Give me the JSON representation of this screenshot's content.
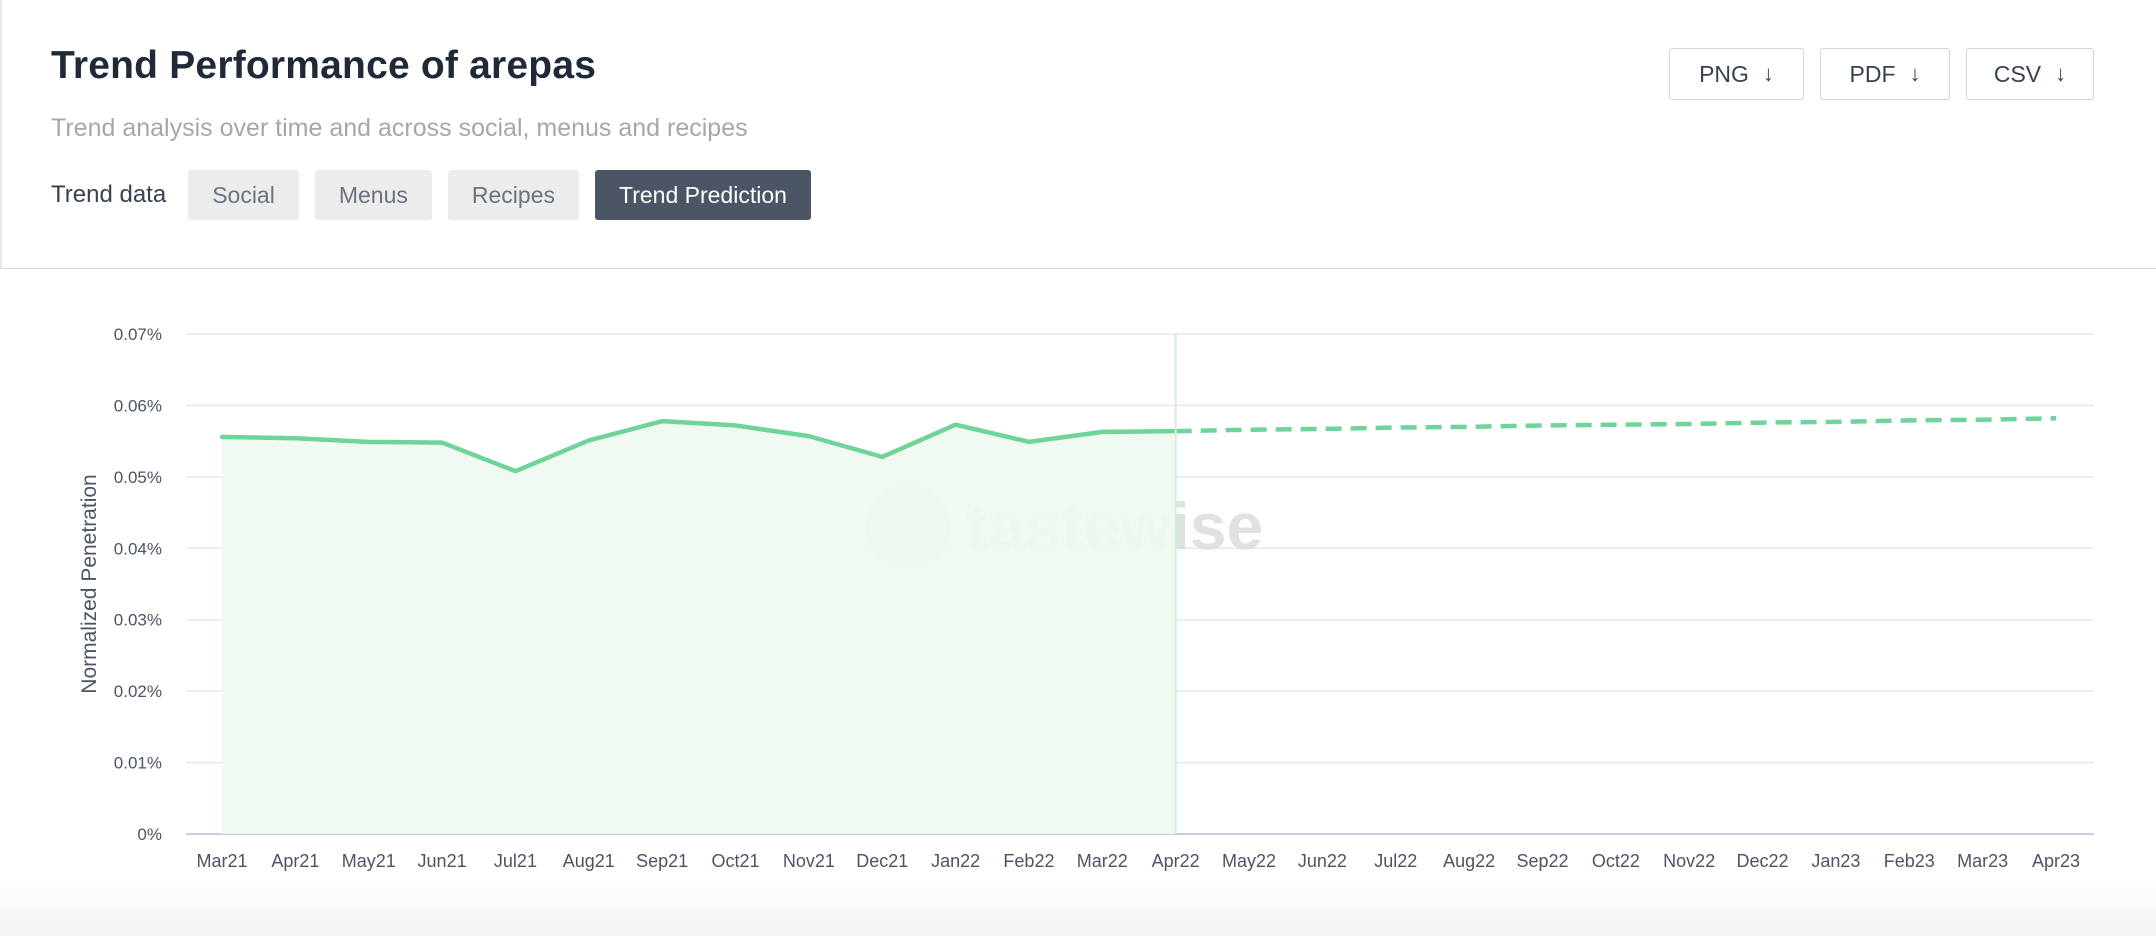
{
  "header": {
    "title": "Trend Performance of arepas",
    "subtitle": "Trend analysis over time and across social, menus and recipes",
    "trend_label": "Trend data",
    "tabs": [
      {
        "label": "Social",
        "active": false
      },
      {
        "label": "Menus",
        "active": false
      },
      {
        "label": "Recipes",
        "active": false
      },
      {
        "label": "Trend Prediction",
        "active": true
      }
    ]
  },
  "export": {
    "png_label": "PNG",
    "pdf_label": "PDF",
    "csv_label": "CSV",
    "arrow_icon": "arrow-down-icon"
  },
  "watermark": {
    "text": "tastewise",
    "icon": "tastewise-logo-icon"
  },
  "colors": {
    "line": "#6fd49a",
    "fill": "#eef9f2",
    "active_tab": "#4b5565",
    "grid": "#e5e7eb",
    "axis": "#c7cedf"
  },
  "chart_data": {
    "type": "line",
    "ylabel": "Normalized Penetration",
    "xlabel": "",
    "ylim": [
      0,
      0.07
    ],
    "y_ticks": [
      "0%",
      "0.01%",
      "0.02%",
      "0.03%",
      "0.04%",
      "0.05%",
      "0.06%",
      "0.07%"
    ],
    "y_tick_values": [
      0,
      0.01,
      0.02,
      0.03,
      0.04,
      0.05,
      0.06,
      0.07
    ],
    "categories": [
      "Mar21",
      "Apr21",
      "May21",
      "Jun21",
      "Jul21",
      "Aug21",
      "Sep21",
      "Oct21",
      "Nov21",
      "Dec21",
      "Jan22",
      "Feb22",
      "Mar22",
      "Apr22",
      "May22",
      "Jun22",
      "Jul22",
      "Aug22",
      "Sep22",
      "Oct22",
      "Nov22",
      "Dec22",
      "Jan23",
      "Feb23",
      "Mar23",
      "Apr23"
    ],
    "grid": true,
    "legend": "none",
    "series": [
      {
        "style": "solid",
        "area_fill": true,
        "values": [
          0.0556,
          0.0554,
          0.0549,
          0.0548,
          0.0508,
          0.0551,
          0.0578,
          0.0572,
          0.0557,
          0.0528,
          0.0573,
          0.0549,
          0.0563,
          0.0564,
          null,
          null,
          null,
          null,
          null,
          null,
          null,
          null,
          null,
          null,
          null,
          null
        ]
      },
      {
        "style": "dashed",
        "area_fill": false,
        "values": [
          null,
          null,
          null,
          null,
          null,
          null,
          null,
          null,
          null,
          null,
          null,
          null,
          null,
          0.0564,
          0.0566,
          0.0567,
          0.0569,
          0.057,
          0.0572,
          0.0573,
          0.0574,
          0.0576,
          0.0577,
          0.0579,
          0.058,
          0.0582
        ]
      }
    ],
    "divider_category": "Apr22"
  }
}
